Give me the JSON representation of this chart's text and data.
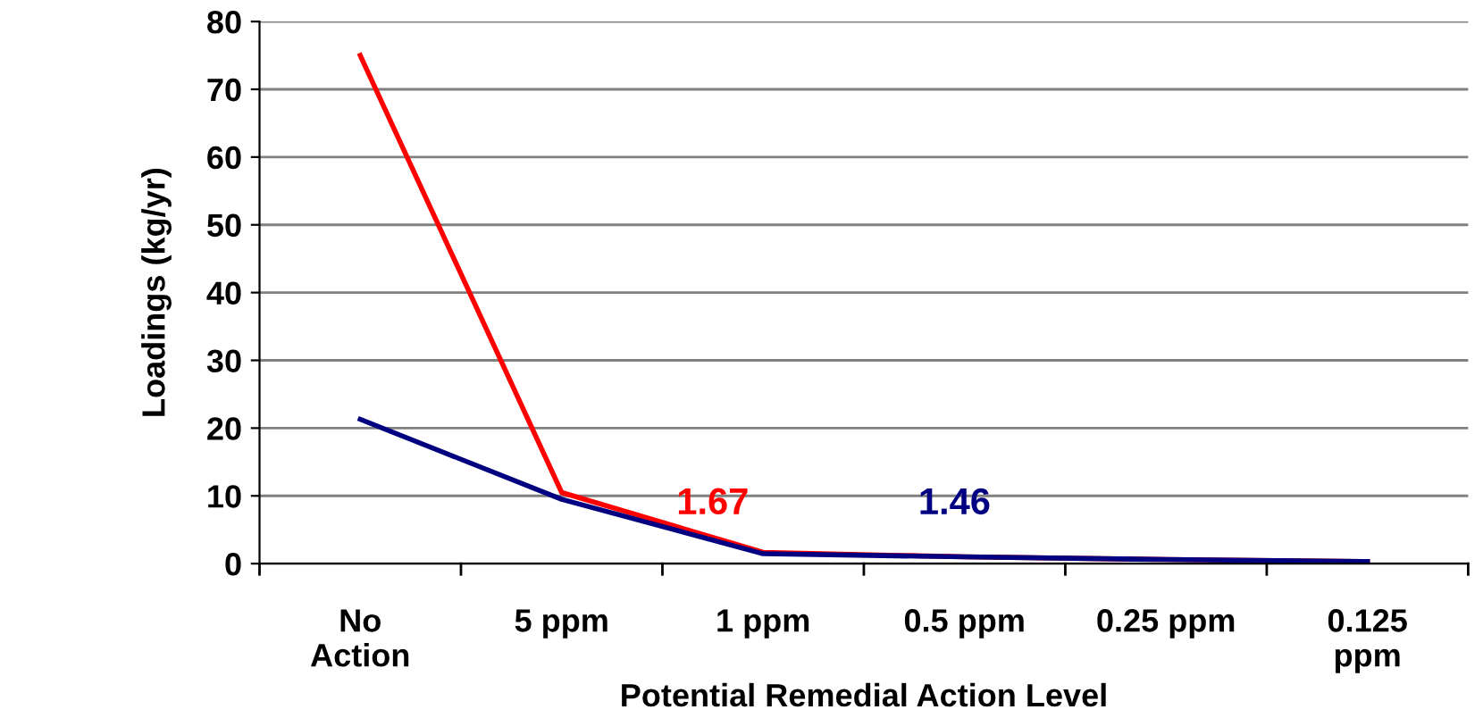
{
  "chart_data": {
    "type": "line",
    "xlabel": "Potential Remedial Action Level",
    "ylabel": "Loadings (kg/yr)",
    "categories": [
      "No\nAction",
      "5 ppm",
      "1 ppm",
      "0.5 ppm",
      "0.25 ppm",
      "0.125\nppm"
    ],
    "series": [
      {
        "color": "#ff0000",
        "values": [
          75,
          10.5,
          1.67,
          1.0,
          0.6,
          0.3
        ],
        "value_labels": [
          null,
          null,
          "1.67",
          null,
          null,
          null
        ]
      },
      {
        "color": "#000080",
        "values": [
          21.3,
          9.5,
          1.46,
          1.0,
          0.6,
          0.3
        ]
      }
    ],
    "annotations": [
      "1.46"
    ],
    "ylim": [
      0,
      80
    ],
    "yticks": [
      0,
      10,
      20,
      30,
      40,
      50,
      60,
      70,
      80
    ],
    "grid": "y",
    "marker": "none",
    "line_style": "solid",
    "legend": false
  }
}
